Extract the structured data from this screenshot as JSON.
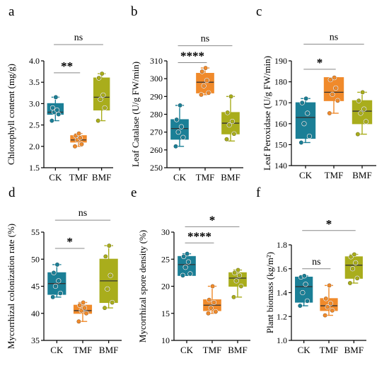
{
  "colors": {
    "CK": "#1b7f96",
    "TMF": "#f08a2b",
    "BMF": "#a9ad1c",
    "point": "#ffffff"
  },
  "chart_data": [
    {
      "type": "box",
      "panel": "a",
      "ylabel": "Chlorophyll content (mg/g)",
      "ylim": [
        1.5,
        4.0
      ],
      "yticks": [
        "1.5",
        "2.0",
        "2.5",
        "3.0",
        "3.5",
        "4.0"
      ],
      "categories": [
        "CK",
        "TMF",
        "BMF"
      ],
      "boxes": [
        {
          "name": "CK",
          "min": 2.6,
          "q1": 2.75,
          "median": 2.8,
          "q3": 3.0,
          "max": 3.15,
          "points": [
            2.6,
            2.75,
            2.8,
            2.85,
            2.9,
            3.15
          ]
        },
        {
          "name": "TMF",
          "min": 2.0,
          "q1": 2.1,
          "median": 2.15,
          "q3": 2.25,
          "max": 2.3,
          "points": [
            2.0,
            2.05,
            2.15,
            2.2,
            2.25,
            2.3
          ]
        },
        {
          "name": "BMF",
          "min": 2.6,
          "q1": 2.85,
          "median": 3.15,
          "q3": 3.6,
          "max": 3.7,
          "points": [
            2.6,
            2.9,
            3.1,
            3.2,
            3.6,
            3.7
          ]
        }
      ],
      "comparisons": [
        {
          "from": 0,
          "to": 1,
          "label": "**",
          "y": 3.72
        },
        {
          "from": 0,
          "to": 2,
          "label": "ns",
          "y": 4.38
        }
      ]
    },
    {
      "type": "box",
      "panel": "b",
      "ylabel": "Leaf Catalase (U/g FW/min)",
      "ylim": [
        250,
        310
      ],
      "yticks": [
        "250",
        "260",
        "270",
        "280",
        "290",
        "300",
        "310"
      ],
      "categories": [
        "CK",
        "TMF",
        "BMF"
      ],
      "boxes": [
        {
          "name": "CK",
          "min": 262,
          "q1": 266,
          "median": 272,
          "q3": 277,
          "max": 285,
          "points": [
            262,
            267,
            270,
            273,
            277,
            285
          ]
        },
        {
          "name": "TMF",
          "min": 291,
          "q1": 292,
          "median": 298,
          "q3": 303,
          "max": 306,
          "points": [
            291,
            292,
            296,
            299,
            304,
            306
          ]
        },
        {
          "name": "BMF",
          "min": 265,
          "q1": 269,
          "median": 275,
          "q3": 281,
          "max": 290,
          "points": [
            266,
            269,
            274,
            276,
            281,
            290
          ]
        }
      ],
      "comparisons": [
        {
          "from": 0,
          "to": 1,
          "label": "****",
          "y": 309
        },
        {
          "from": 0,
          "to": 2,
          "label": "ns",
          "y": 318.5
        }
      ]
    },
    {
      "type": "box",
      "panel": "c",
      "ylabel": "Leaf Peroxidase (U/g FW/min)",
      "ylim": [
        140,
        190
      ],
      "yticks": [
        "140",
        "150",
        "160",
        "170",
        "180",
        "190"
      ],
      "categories": [
        "CK",
        "TMF",
        "BMF"
      ],
      "boxes": [
        {
          "name": "CK",
          "min": 151,
          "q1": 153,
          "median": 163,
          "q3": 170,
          "max": 172,
          "points": [
            151,
            154,
            160,
            165,
            170,
            172
          ]
        },
        {
          "name": "TMF",
          "min": 165,
          "q1": 171,
          "median": 175,
          "q3": 182,
          "max": 182,
          "points": [
            165,
            171,
            174,
            177,
            181,
            182
          ]
        },
        {
          "name": "BMF",
          "min": 155,
          "q1": 160,
          "median": 166,
          "q3": 171,
          "max": 175,
          "points": [
            155,
            161,
            165,
            167,
            171,
            175
          ]
        }
      ],
      "comparisons": [
        {
          "from": 0,
          "to": 1,
          "label": "*",
          "y": 186
        },
        {
          "from": 0,
          "to": 2,
          "label": "ns",
          "y": 198
        }
      ]
    },
    {
      "type": "box",
      "panel": "d",
      "ylabel": "Mycorrhizal colonization rate (%)",
      "ylim": [
        35,
        55
      ],
      "yticks": [
        "35",
        "40",
        "45",
        "50",
        "55"
      ],
      "categories": [
        "CK",
        "TMF",
        "BMF"
      ],
      "boxes": [
        {
          "name": "CK",
          "min": 43,
          "q1": 43.5,
          "median": 45.5,
          "q3": 47.5,
          "max": 49,
          "points": [
            43,
            43.7,
            45,
            46,
            47.5,
            49
          ]
        },
        {
          "name": "TMF",
          "min": 38.5,
          "q1": 40,
          "median": 40.5,
          "q3": 41.5,
          "max": 42,
          "points": [
            38.5,
            40,
            40.5,
            41,
            41.5,
            42
          ]
        },
        {
          "name": "BMF",
          "min": 41,
          "q1": 42,
          "median": 46,
          "q3": 50,
          "max": 52.5,
          "points": [
            41,
            42,
            44.5,
            47,
            50.5,
            52.5
          ]
        }
      ],
      "comparisons": [
        {
          "from": 0,
          "to": 1,
          "label": "*",
          "y": 52
        },
        {
          "from": 0,
          "to": 2,
          "label": "ns",
          "y": 57.2
        }
      ]
    },
    {
      "type": "box",
      "panel": "e",
      "ylabel": "Mycorrhizal spore density (%)",
      "ylim": [
        10,
        30
      ],
      "yticks": [
        "10",
        "15",
        "20",
        "25",
        "30"
      ],
      "categories": [
        "CK",
        "TMF",
        "BMF"
      ],
      "boxes": [
        {
          "name": "CK",
          "min": 22,
          "q1": 22,
          "median": 24,
          "q3": 25.5,
          "max": 26,
          "points": [
            22,
            22.3,
            23.5,
            24.5,
            25.5,
            26
          ]
        },
        {
          "name": "TMF",
          "min": 15,
          "q1": 15.5,
          "median": 16.5,
          "q3": 17.5,
          "max": 20,
          "points": [
            15,
            15.3,
            16,
            17,
            17.5,
            20
          ]
        },
        {
          "name": "BMF",
          "min": 18,
          "q1": 20,
          "median": 21.5,
          "q3": 22.5,
          "max": 23,
          "points": [
            18,
            20,
            21,
            22,
            22.5,
            23
          ]
        }
      ],
      "comparisons": [
        {
          "from": 0,
          "to": 1,
          "label": "****",
          "y": 28
        },
        {
          "from": 0,
          "to": 2,
          "label": "*",
          "y": 31
        }
      ]
    },
    {
      "type": "box",
      "panel": "f",
      "ylabel": "Plant biomass (kg/m²)",
      "ylim": [
        1.0,
        1.8
      ],
      "yticks": [
        "1.0",
        "1.2",
        "1.4",
        "1.6",
        "1.8"
      ],
      "categories": [
        "CK",
        "TMF",
        "BMF"
      ],
      "boxes": [
        {
          "name": "CK",
          "min": 1.29,
          "q1": 1.32,
          "median": 1.45,
          "q3": 1.53,
          "max": 1.54,
          "points": [
            1.29,
            1.33,
            1.4,
            1.47,
            1.53,
            1.54
          ]
        },
        {
          "name": "TMF",
          "min": 1.21,
          "q1": 1.25,
          "median": 1.29,
          "q3": 1.35,
          "max": 1.46,
          "points": [
            1.21,
            1.25,
            1.28,
            1.31,
            1.35,
            1.46
          ]
        },
        {
          "name": "BMF",
          "min": 1.48,
          "q1": 1.52,
          "median": 1.63,
          "q3": 1.7,
          "max": 1.72,
          "points": [
            1.48,
            1.52,
            1.6,
            1.65,
            1.7,
            1.72
          ]
        }
      ],
      "comparisons": [
        {
          "from": 0,
          "to": 1,
          "label": "ns",
          "y": 1.6
        },
        {
          "from": 0,
          "to": 2,
          "label": "*",
          "y": 1.92
        }
      ]
    }
  ]
}
